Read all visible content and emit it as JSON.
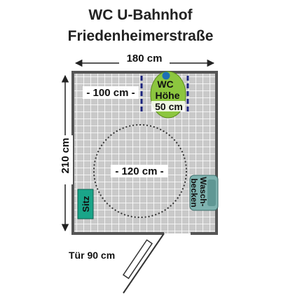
{
  "title": {
    "line1": "WC U-Bahnhof",
    "line2": "Friedenheimerstraße"
  },
  "dimensions": {
    "width": "180 cm",
    "height": "210 cm",
    "top_left_clearance": "- 100 cm -",
    "turning_circle": "- 120 cm -",
    "door": "Tür 90 cm"
  },
  "fixtures": {
    "wc_line1": "WC",
    "wc_line2": "Höhe",
    "wc_line3": "50 cm",
    "seat": "Sitz",
    "sink": "Wasch-becken"
  },
  "colors": {
    "floor_tile": "#c9c9c9",
    "floor_grout": "#ffffff",
    "wall": "#555555",
    "wc_fill": "#8cc63f",
    "wc_seat_dot": "#1e6fb5",
    "grab_bar": "#1a237e",
    "seat_fill": "#1aa589",
    "sink_fill": "#7fb3b0"
  }
}
